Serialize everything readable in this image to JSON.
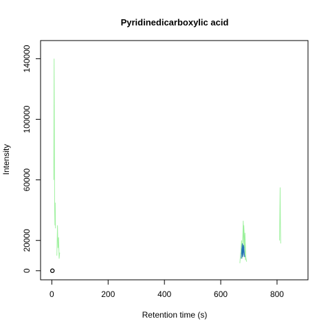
{
  "chart_data": {
    "type": "line",
    "title": "Pyridinedicarboxylic acid",
    "xlabel": "Retention time (s)",
    "ylabel": "Intensity",
    "xlim": [
      -40,
      910
    ],
    "ylim": [
      -6000,
      152000
    ],
    "x_ticks": [
      0,
      200,
      400,
      600,
      800
    ],
    "y_ticks": [
      0,
      20000,
      60000,
      100000,
      140000
    ],
    "grid": false,
    "legend": "none",
    "colors": {
      "green": "#90ee90",
      "blue": "#1f6fb4",
      "point": "#000000"
    },
    "series": [
      {
        "color": "green",
        "x": [
          7,
          8,
          9,
          10,
          11,
          12,
          13
        ],
        "y": [
          60000,
          140000,
          95000,
          40000,
          30000,
          45000,
          28000
        ]
      },
      {
        "color": "green",
        "x": [
          18,
          20,
          22,
          24,
          26,
          28
        ],
        "y": [
          10000,
          30000,
          15000,
          22000,
          8000,
          12000
        ]
      },
      {
        "color": "green",
        "x": [
          668,
          671,
          674,
          677,
          680,
          683,
          686,
          689,
          692
        ],
        "y": [
          5000,
          12000,
          20000,
          10000,
          33000,
          15000,
          25000,
          9000,
          6000
        ]
      },
      {
        "color": "green",
        "x": [
          676,
          679,
          682,
          685,
          688
        ],
        "y": [
          8000,
          22000,
          30000,
          18000,
          7000
        ]
      },
      {
        "color": "blue",
        "x": [
          673,
          675,
          677,
          679,
          681,
          683,
          685
        ],
        "y": [
          8000,
          14000,
          18000,
          10000,
          17000,
          12000,
          9000
        ]
      },
      {
        "color": "blue",
        "x": [
          674,
          676,
          678,
          680,
          682,
          684
        ],
        "y": [
          11000,
          16000,
          9000,
          13000,
          16000,
          10000
        ]
      },
      {
        "color": "green",
        "x": [
          809,
          810,
          811,
          812,
          813
        ],
        "y": [
          20000,
          40000,
          55000,
          30000,
          18000
        ]
      }
    ],
    "points": [
      {
        "x": 2,
        "y": 0
      }
    ]
  }
}
